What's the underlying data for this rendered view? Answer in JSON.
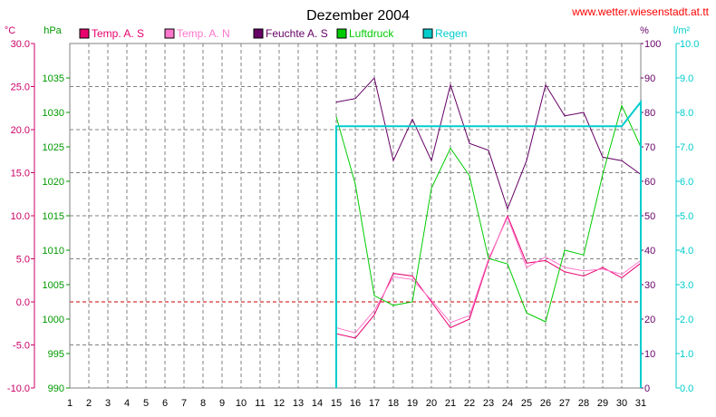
{
  "header": {
    "title": "Dezember 2004",
    "source": "www.wetter.wiesenstadt.at.tt"
  },
  "units": {
    "temp": "°C",
    "pressure": "hPa",
    "humidity": "%",
    "rain": "l/m²"
  },
  "chart_data": {
    "type": "line",
    "title": "Dezember 2004",
    "x": [
      1,
      2,
      3,
      4,
      5,
      6,
      7,
      8,
      9,
      10,
      11,
      12,
      13,
      14,
      15,
      16,
      17,
      18,
      19,
      20,
      21,
      22,
      23,
      24,
      25,
      26,
      27,
      28,
      29,
      30,
      31
    ],
    "xlim": [
      1,
      31
    ],
    "grid": true,
    "legend_position": "top",
    "axes": {
      "temp": {
        "unit": "°C",
        "range": [
          -10,
          30
        ],
        "ticks": [
          "30.0",
          "25.0",
          "20.0",
          "15.0",
          "10.0",
          "5.0",
          "0.0",
          "-5.0",
          "-10.0"
        ],
        "color": "#cc0066"
      },
      "pressure": {
        "unit": "hPa",
        "range": [
          990,
          1040
        ],
        "ticks": [
          "1035",
          "1030",
          "1025",
          "1020",
          "1015",
          "1010",
          "1005",
          "1000",
          "995",
          "990"
        ],
        "color": "#009900"
      },
      "humidity": {
        "unit": "%",
        "range": [
          0,
          100
        ],
        "ticks": [
          "100",
          "90",
          "80",
          "70",
          "60",
          "50",
          "40",
          "30",
          "20",
          "10",
          "0"
        ],
        "color": "#660066"
      },
      "rain": {
        "unit": "l/m²",
        "range": [
          0,
          10
        ],
        "ticks": [
          "10.0",
          "9.0",
          "8.0",
          "7.0",
          "6.0",
          "5.0",
          "4.0",
          "3.0",
          "2.0",
          "1.0",
          "0.0"
        ],
        "color": "#00cccc"
      }
    },
    "series": [
      {
        "name": "Temp. A. S",
        "axis": "temp",
        "color": "#e8006e",
        "x": [
          15,
          16,
          17,
          18,
          19,
          20,
          21,
          22,
          23,
          24,
          25,
          26,
          27,
          28,
          29,
          30,
          31
        ],
        "values": [
          -3.7,
          -4.2,
          -1.5,
          3.3,
          3.0,
          0.0,
          -3.0,
          -2.0,
          4.8,
          10.0,
          4.5,
          4.8,
          3.5,
          3.0,
          4.0,
          2.8,
          4.5
        ]
      },
      {
        "name": "Temp. A. N",
        "axis": "temp",
        "color": "#ff77cc",
        "x": [
          15,
          16,
          17,
          18,
          19,
          20,
          21,
          22,
          23,
          24,
          25,
          26,
          27,
          28,
          29,
          30,
          31
        ],
        "values": [
          -3.0,
          -3.6,
          -1.0,
          2.9,
          2.6,
          0.2,
          -2.4,
          -1.6,
          5.0,
          9.8,
          4.0,
          5.2,
          4.0,
          3.6,
          3.8,
          3.2,
          4.8
        ]
      },
      {
        "name": "Feuchte A. S",
        "axis": "humidity",
        "color": "#660066",
        "x": [
          15,
          16,
          17,
          18,
          19,
          20,
          21,
          22,
          23,
          24,
          25,
          26,
          27,
          28,
          29,
          30,
          31
        ],
        "values": [
          83,
          84,
          90,
          66,
          78,
          66,
          88,
          71,
          69,
          52,
          66,
          88,
          79,
          80,
          67,
          66,
          62
        ]
      },
      {
        "name": "Luftdruck",
        "axis": "pressure",
        "color": "#00cc00",
        "x": [
          15,
          16,
          17,
          18,
          19,
          20,
          21,
          22,
          23,
          24,
          25,
          26,
          27,
          28,
          29,
          30,
          31
        ],
        "values": [
          1029.4,
          1019.6,
          1003.4,
          1002.0,
          1002.5,
          1019.0,
          1024.8,
          1020.8,
          1008.8,
          1008.0,
          1000.9,
          999.6,
          1010.0,
          1009.3,
          1021.0,
          1031.0,
          1025.0
        ]
      },
      {
        "name": "Regen",
        "axis": "rain",
        "color": "#00cccc",
        "x": [
          15,
          15,
          30,
          31,
          31
        ],
        "values": [
          0.0,
          7.6,
          7.6,
          8.3,
          0.0
        ]
      }
    ]
  }
}
